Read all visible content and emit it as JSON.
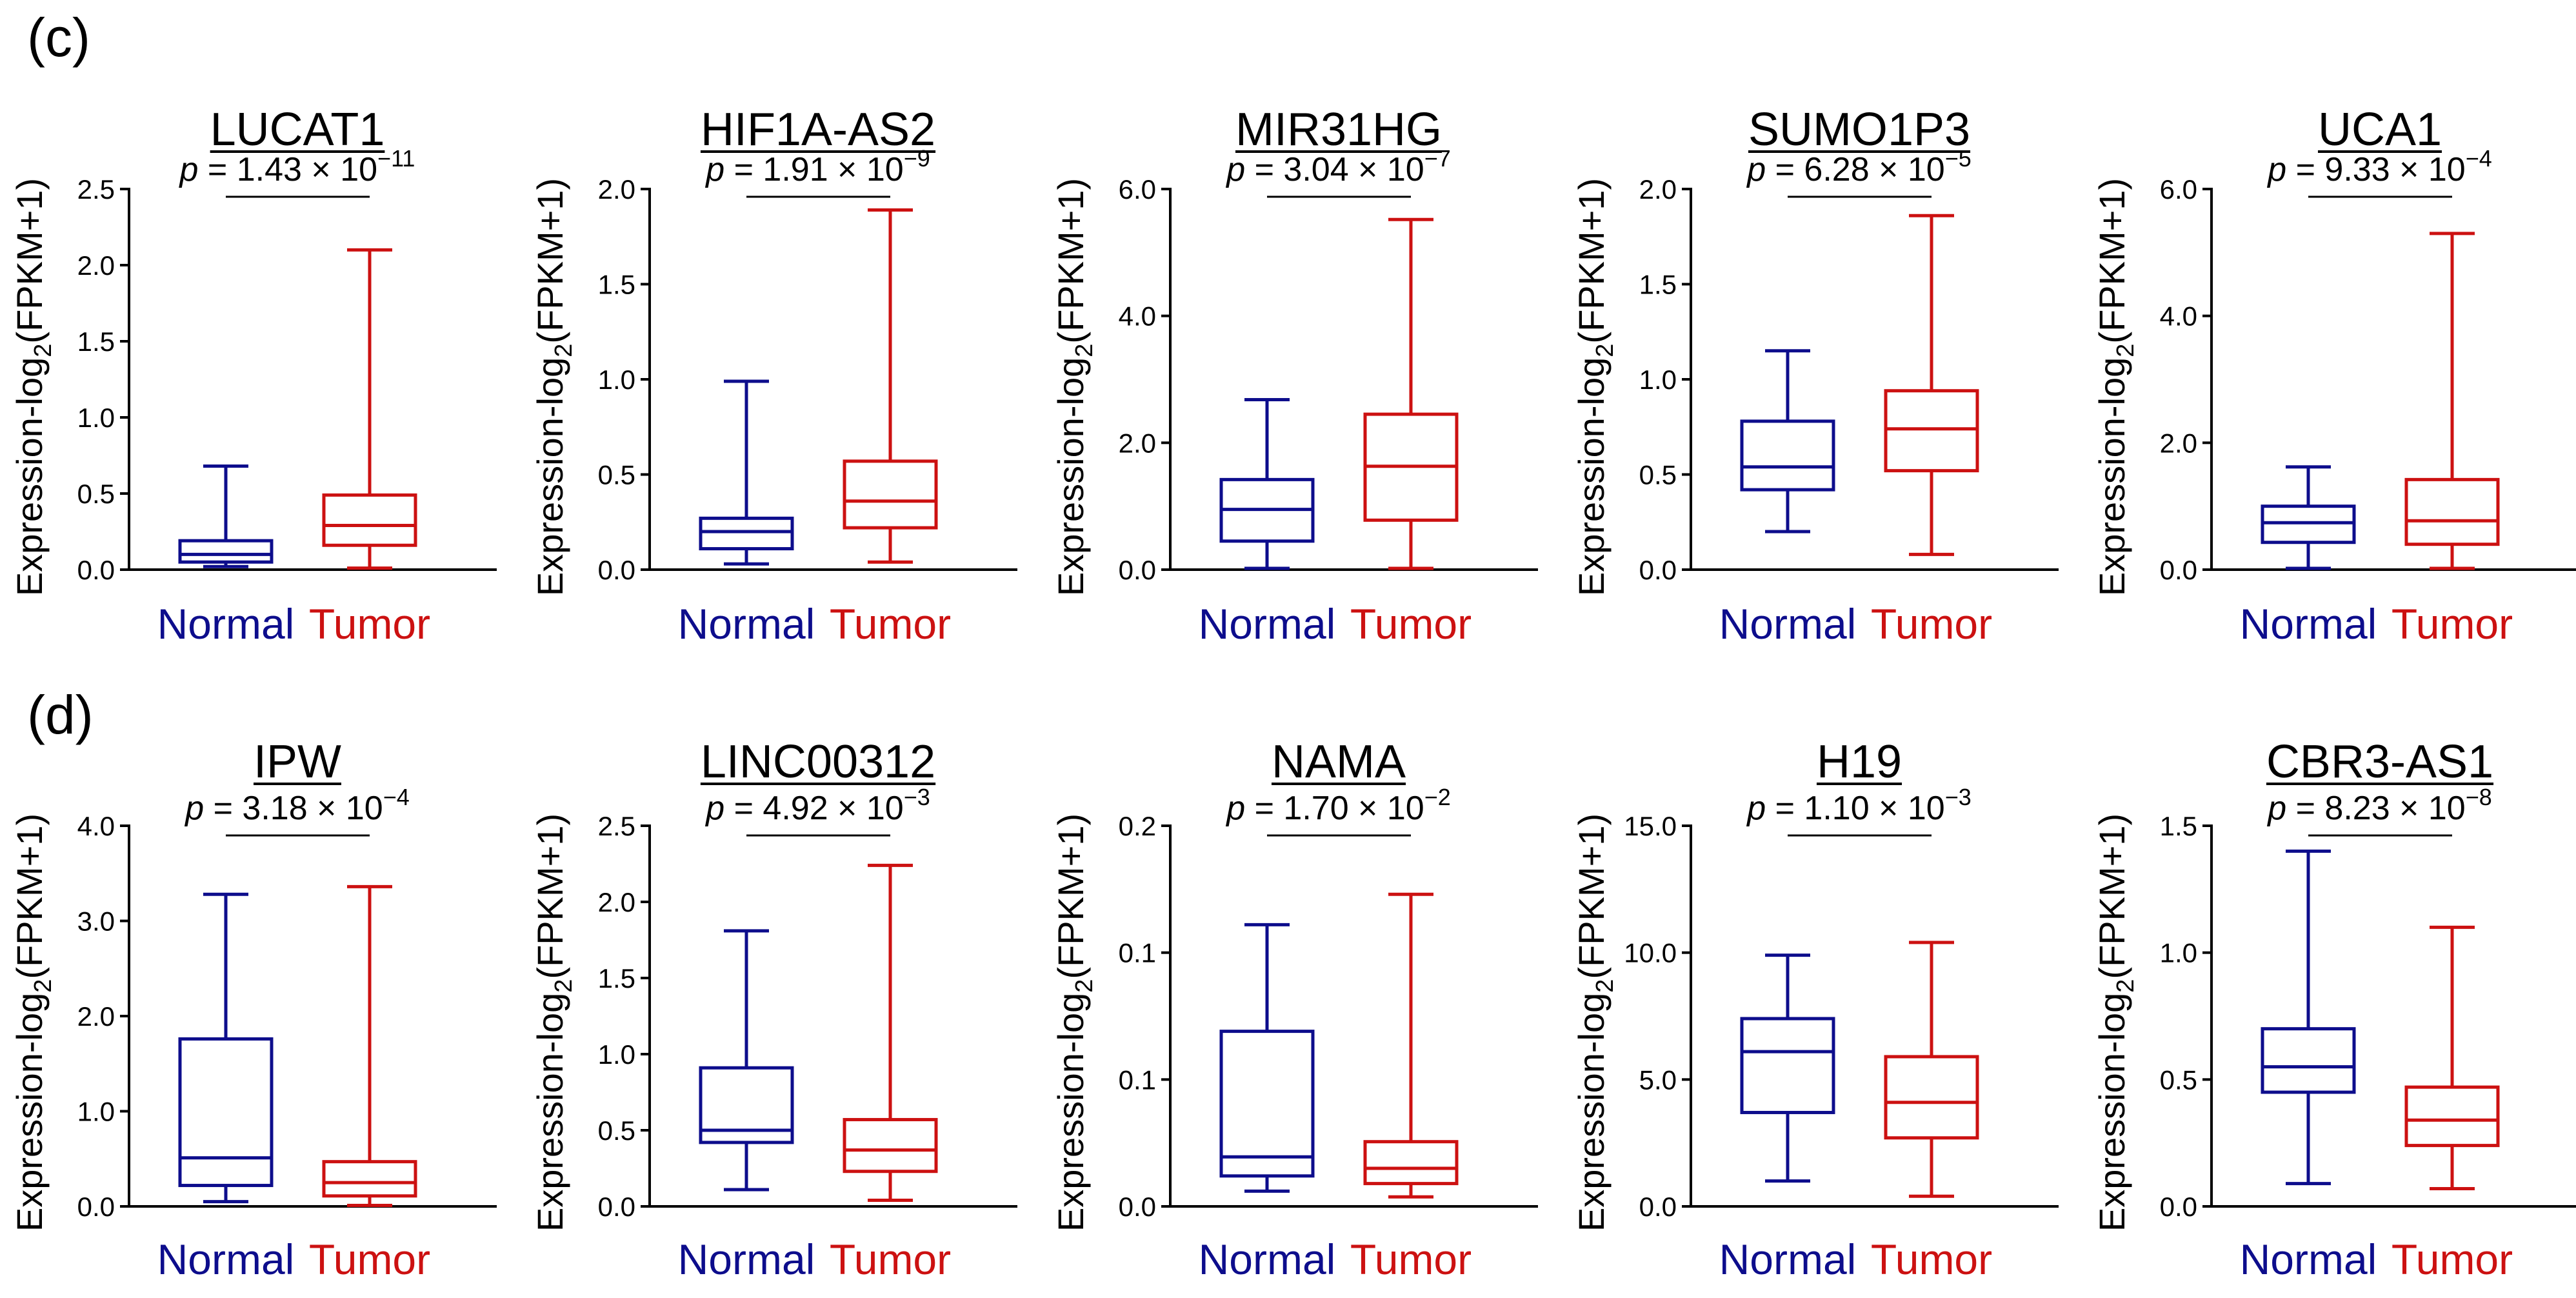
{
  "figure": {
    "ylabel_prefix": "Expression-log",
    "ylabel_sub": "2",
    "ylabel_suffix": "(FPKM+1)",
    "group_names": [
      "Normal",
      "Tumor"
    ],
    "colors": {
      "normal": "#0d0d8c",
      "tumor": "#cc1111",
      "axis": "#000000"
    }
  },
  "rows": [
    {
      "label": "(c)",
      "chart_data": [
        {
          "type": "boxplot",
          "title": "LUCAT1",
          "p_prefix": "p",
          "p_mantissa": "1.43",
          "p_exponent": "−11",
          "ylim": [
            0,
            2.5
          ],
          "ticks": [
            "0.0",
            "0.5",
            "1.0",
            "1.5",
            "2.0",
            "2.5"
          ],
          "series": [
            {
              "name": "Normal",
              "min": 0.02,
              "q1": 0.05,
              "median": 0.1,
              "q3": 0.19,
              "max": 0.68
            },
            {
              "name": "Tumor",
              "min": 0.01,
              "q1": 0.16,
              "median": 0.29,
              "q3": 0.49,
              "max": 2.1
            }
          ]
        },
        {
          "type": "boxplot",
          "title": "HIF1A-AS2",
          "p_prefix": "p",
          "p_mantissa": "1.91",
          "p_exponent": "−9",
          "ylim": [
            0,
            2.0
          ],
          "ticks": [
            "0.0",
            "0.5",
            "1.0",
            "1.5",
            "2.0"
          ],
          "series": [
            {
              "name": "Normal",
              "min": 0.03,
              "q1": 0.11,
              "median": 0.2,
              "q3": 0.27,
              "max": 0.99
            },
            {
              "name": "Tumor",
              "min": 0.04,
              "q1": 0.22,
              "median": 0.36,
              "q3": 0.57,
              "max": 1.89
            }
          ]
        },
        {
          "type": "boxplot",
          "title": "MIR31HG",
          "p_prefix": "p",
          "p_mantissa": "3.04",
          "p_exponent": "−7",
          "ylim": [
            0,
            6.0
          ],
          "ticks": [
            "0.0",
            "2.0",
            "4.0",
            "6.0"
          ],
          "series": [
            {
              "name": "Normal",
              "min": 0.02,
              "q1": 0.45,
              "median": 0.95,
              "q3": 1.42,
              "max": 2.68
            },
            {
              "name": "Tumor",
              "min": 0.02,
              "q1": 0.78,
              "median": 1.63,
              "q3": 2.45,
              "max": 5.52
            }
          ]
        },
        {
          "type": "boxplot",
          "title": "SUMO1P3",
          "p_prefix": "p",
          "p_mantissa": "6.28",
          "p_exponent": "−5",
          "ylim": [
            0,
            2.0
          ],
          "ticks": [
            "0.0",
            "0.5",
            "1.0",
            "1.5",
            "2.0"
          ],
          "series": [
            {
              "name": "Normal",
              "min": 0.2,
              "q1": 0.42,
              "median": 0.54,
              "q3": 0.78,
              "max": 1.15
            },
            {
              "name": "Tumor",
              "min": 0.08,
              "q1": 0.52,
              "median": 0.74,
              "q3": 0.94,
              "max": 1.86
            }
          ]
        },
        {
          "type": "boxplot",
          "title": "UCA1",
          "p_prefix": "p",
          "p_mantissa": "9.33",
          "p_exponent": "−4",
          "ylim": [
            0,
            6.0
          ],
          "ticks": [
            "0.0",
            "2.0",
            "4.0",
            "6.0"
          ],
          "series": [
            {
              "name": "Normal",
              "min": 0.02,
              "q1": 0.43,
              "median": 0.74,
              "q3": 1.0,
              "max": 1.62
            },
            {
              "name": "Tumor",
              "min": 0.02,
              "q1": 0.4,
              "median": 0.77,
              "q3": 1.42,
              "max": 5.3
            }
          ]
        }
      ]
    },
    {
      "label": "(d)",
      "chart_data": [
        {
          "type": "boxplot",
          "title": "IPW",
          "p_prefix": "p",
          "p_mantissa": "3.18",
          "p_exponent": "−4",
          "ylim": [
            0,
            4.0
          ],
          "ticks": [
            "0.0",
            "1.0",
            "2.0",
            "3.0",
            "4.0"
          ],
          "series": [
            {
              "name": "Normal",
              "min": 0.05,
              "q1": 0.22,
              "median": 0.51,
              "q3": 1.76,
              "max": 3.28
            },
            {
              "name": "Tumor",
              "min": 0.01,
              "q1": 0.11,
              "median": 0.25,
              "q3": 0.47,
              "max": 3.36
            }
          ]
        },
        {
          "type": "boxplot",
          "title": "LINC00312",
          "p_prefix": "p",
          "p_mantissa": "4.92",
          "p_exponent": "−3",
          "ylim": [
            0,
            2.5
          ],
          "ticks": [
            "0.0",
            "0.5",
            "1.0",
            "1.5",
            "2.0",
            "2.5"
          ],
          "series": [
            {
              "name": "Normal",
              "min": 0.11,
              "q1": 0.42,
              "median": 0.5,
              "q3": 0.91,
              "max": 1.81
            },
            {
              "name": "Tumor",
              "min": 0.04,
              "q1": 0.23,
              "median": 0.37,
              "q3": 0.57,
              "max": 2.24
            }
          ]
        },
        {
          "type": "boxplot",
          "title": "NAMA",
          "p_prefix": "p",
          "p_mantissa": "1.70",
          "p_exponent": "−2",
          "ylim": [
            0,
            0.2
          ],
          "ticks": [
            "0.0",
            "0.1",
            "0.1",
            "0.2"
          ],
          "series": [
            {
              "name": "Normal",
              "min": 0.008,
              "q1": 0.016,
              "median": 0.026,
              "q3": 0.092,
              "max": 0.148
            },
            {
              "name": "Tumor",
              "min": 0.005,
              "q1": 0.012,
              "median": 0.02,
              "q3": 0.034,
              "max": 0.164
            }
          ]
        },
        {
          "type": "boxplot",
          "title": "H19",
          "p_prefix": "p",
          "p_mantissa": "1.10",
          "p_exponent": "−3",
          "ylim": [
            0,
            15.0
          ],
          "ticks": [
            "0.0",
            "5.0",
            "10.0",
            "15.0"
          ],
          "series": [
            {
              "name": "Normal",
              "min": 1.0,
              "q1": 3.7,
              "median": 6.1,
              "q3": 7.4,
              "max": 9.9
            },
            {
              "name": "Tumor",
              "min": 0.4,
              "q1": 2.7,
              "median": 4.1,
              "q3": 5.9,
              "max": 10.4
            }
          ]
        },
        {
          "type": "boxplot",
          "title": "CBR3-AS1",
          "p_prefix": "p",
          "p_mantissa": "8.23",
          "p_exponent": "−8",
          "ylim": [
            0,
            1.5
          ],
          "ticks": [
            "0.0",
            "0.5",
            "1.0",
            "1.5"
          ],
          "series": [
            {
              "name": "Normal",
              "min": 0.09,
              "q1": 0.45,
              "median": 0.55,
              "q3": 0.7,
              "max": 1.4
            },
            {
              "name": "Tumor",
              "min": 0.07,
              "q1": 0.24,
              "median": 0.34,
              "q3": 0.47,
              "max": 1.1
            }
          ]
        }
      ]
    }
  ]
}
